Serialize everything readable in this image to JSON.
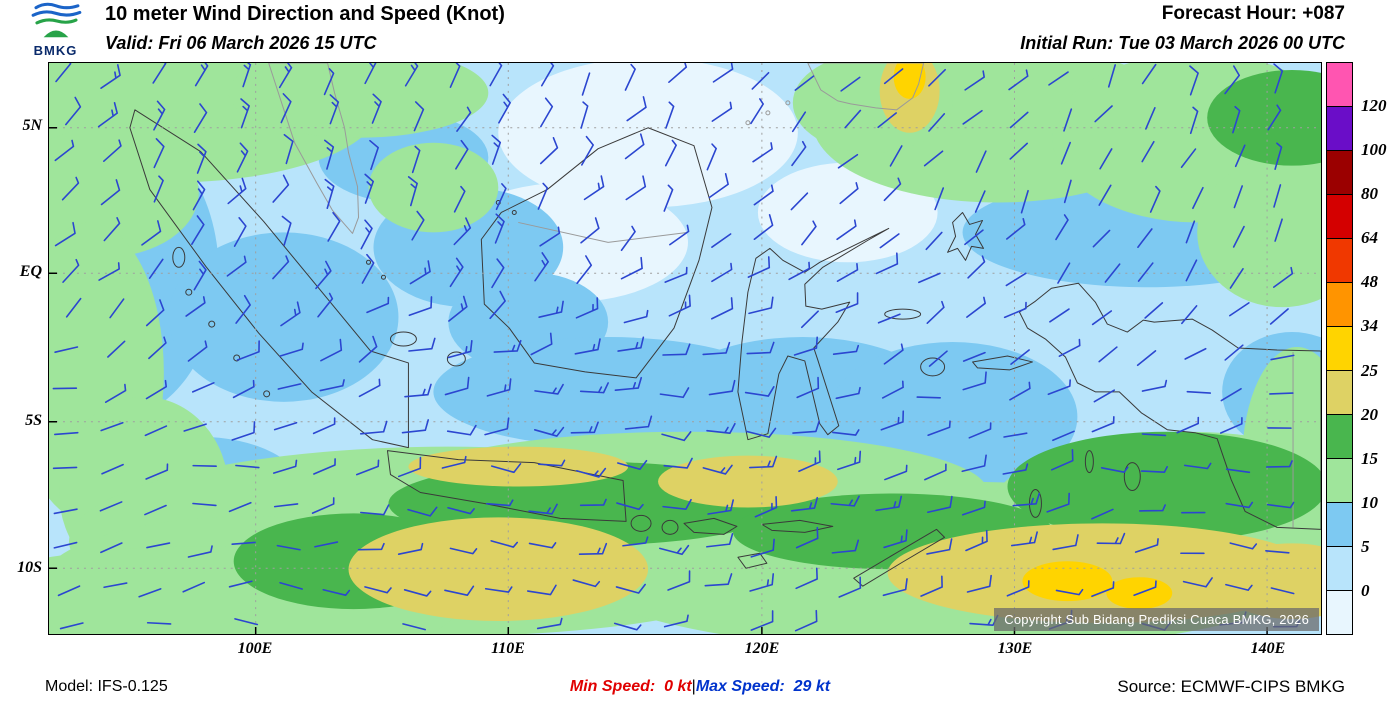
{
  "header": {
    "logo_text": "BMKG",
    "title": "10 meter Wind Direction and Speed (Knot)",
    "valid": "Valid: Fri 06 March 2026 15 UTC",
    "forecast_hour": "Forecast Hour: +087",
    "initial_run": "Initial Run: Tue 03 March 2026 00 UTC"
  },
  "map": {
    "lat_labels": [
      "5N",
      "EQ",
      "5S",
      "10S"
    ],
    "lon_labels": [
      "100E",
      "110E",
      "120E",
      "130E",
      "140E"
    ],
    "copyright": "Copyright Sub Bidang Prediksi Cuaca BMKG, 2026",
    "wind_barb_color": "#2b46d0"
  },
  "legend": {
    "unit": "Knot",
    "labels": [
      "120",
      "100",
      "80",
      "64",
      "48",
      "34",
      "25",
      "20",
      "15",
      "10",
      "5",
      "0"
    ],
    "colors": [
      "#ff55b1",
      "#6a0dc8",
      "#9b0000",
      "#d40000",
      "#f03800",
      "#ff9400",
      "#ffd400",
      "#ded264",
      "#49b64e",
      "#9fe59b",
      "#7dc9f2",
      "#b8e4fb",
      "#e8f6fe"
    ]
  },
  "footer": {
    "model": "Model: IFS-0.125",
    "min_speed": "Min Speed:  0 kt",
    "separator": "|",
    "max_speed": "Max Speed:  29 kt",
    "source": "Source: ECMWF-CIPS BMKG"
  }
}
